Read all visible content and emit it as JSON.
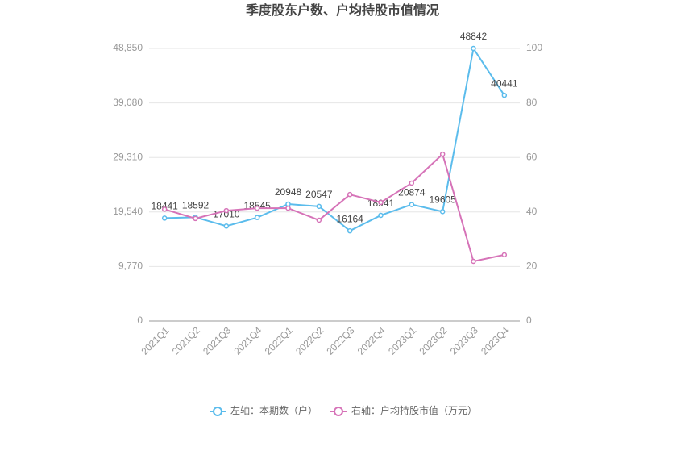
{
  "chart_data": {
    "type": "line",
    "title": "季度股东户数、户均持股市值情况",
    "categories": [
      "2021Q1",
      "2021Q2",
      "2021Q3",
      "2021Q4",
      "2022Q1",
      "2022Q2",
      "2022Q3",
      "2022Q4",
      "2023Q1",
      "2023Q2",
      "2023Q3",
      "2023Q4"
    ],
    "series": [
      {
        "name": "左轴：本期数（户）",
        "color": "#5bbcec",
        "axis": "y",
        "show_labels": true,
        "values": [
          18441,
          18592,
          17010,
          18545,
          20948,
          20547,
          16164,
          18941,
          20874,
          19605,
          48842,
          40441
        ]
      },
      {
        "name": "右轴：户均持股市值（万元）",
        "color": "#d673b8",
        "axis": "y2",
        "show_labels": false,
        "values": [
          41,
          37.6,
          40.5,
          41.4,
          41.4,
          37,
          46.4,
          43.5,
          50.6,
          61.2,
          21.9,
          24.3
        ]
      }
    ],
    "ylim": [
      0,
      48850
    ],
    "yticks": [
      0,
      {
        "value": 9770,
        "label": "9,770"
      },
      {
        "value": 19540,
        "label": "19,540"
      },
      {
        "value": 29310,
        "label": "29,310"
      },
      {
        "value": 39080,
        "label": "39,080"
      },
      {
        "value": 48850,
        "label": "48,850"
      }
    ],
    "y2lim": [
      0,
      100
    ],
    "y2ticks": [
      0,
      20,
      40,
      60,
      80,
      100
    ],
    "grid": true
  }
}
